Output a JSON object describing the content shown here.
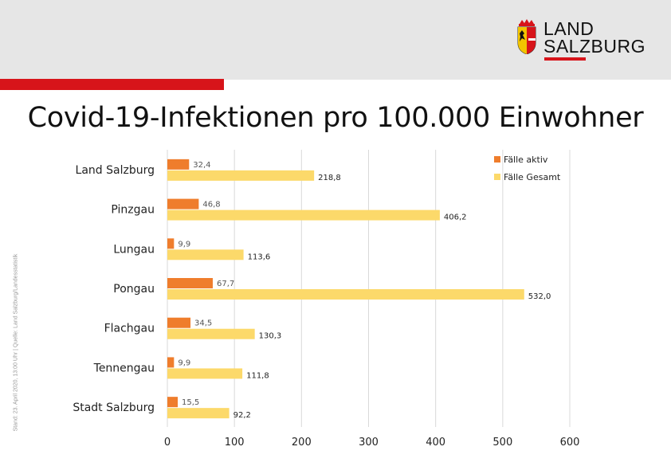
{
  "header": {
    "logo_line1": "LAND",
    "logo_line2": "SALZBURG"
  },
  "colors": {
    "brand_red": "#d7141a",
    "header_bg": "#e6e6e6",
    "series_active": "#ef7d2c",
    "series_total": "#fcd96a"
  },
  "side_note": "Stand: 23. April 2020, 13:00 Uhr | Quelle: Land Salzburg/Landesstatistik",
  "chart_data": {
    "type": "bar",
    "orientation": "horizontal",
    "title": "Covid-19-Infektionen pro 100.000 Einwohner",
    "categories": [
      "Land Salzburg",
      "Pinzgau",
      "Lungau",
      "Pongau",
      "Flachgau",
      "Tennengau",
      "Stadt Salzburg"
    ],
    "series": [
      {
        "name": "Fälle aktiv",
        "values": [
          32.4,
          46.8,
          9.9,
          67.7,
          34.5,
          9.9,
          15.5
        ],
        "labels": [
          "32,4",
          "46,8",
          "9,9",
          "67,7",
          "34,5",
          "9,9",
          "15,5"
        ]
      },
      {
        "name": "Fälle Gesamt",
        "values": [
          218.8,
          406.2,
          113.6,
          532.0,
          130.3,
          111.8,
          92.2
        ],
        "labels": [
          "218,8",
          "406,2",
          "113,6",
          "532,0",
          "130,3",
          "111,8",
          "92,2"
        ]
      }
    ],
    "xlim": [
      0,
      600
    ],
    "xticks": [
      0,
      100,
      200,
      300,
      400,
      500,
      600
    ],
    "xlabel": "",
    "ylabel": "",
    "grid": "vertical",
    "legend": "top-right"
  }
}
